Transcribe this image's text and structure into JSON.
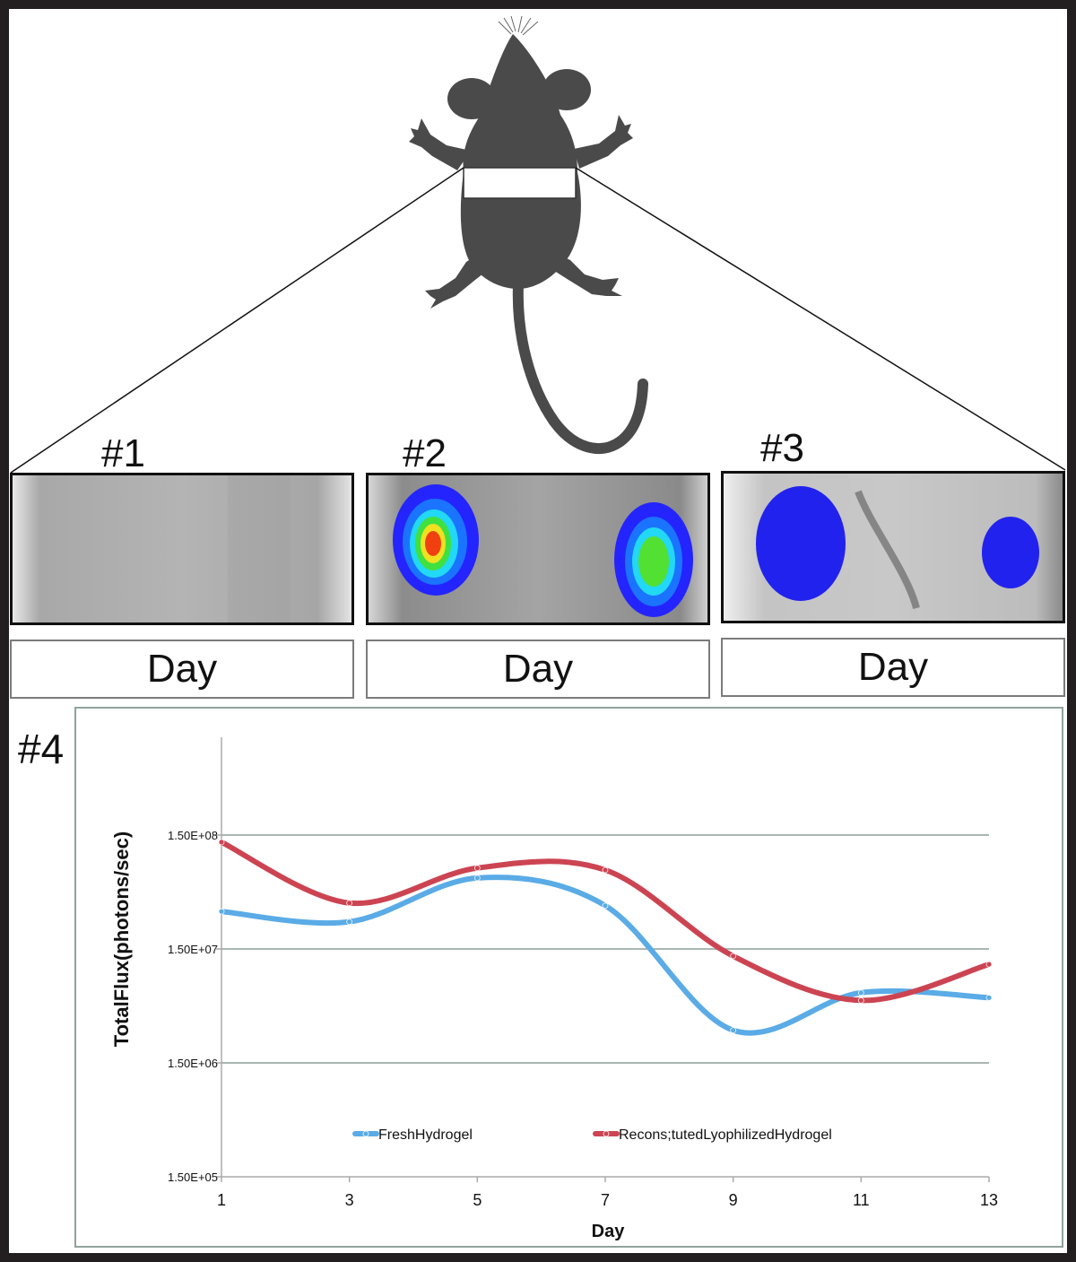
{
  "panels": [
    {
      "label": "#1",
      "day_label": "Day"
    },
    {
      "label": "#2",
      "day_label": "Day"
    },
    {
      "label": "#3",
      "day_label": "Day"
    }
  ],
  "chart_panel_label": "#4",
  "chart_data": {
    "type": "line",
    "xlabel": "Day",
    "ylabel": "TotalFlux(photons/sec)",
    "y_scale": "log",
    "ylim": [
      150000,
      300000000
    ],
    "ytick_labels": [
      "1.50E+05",
      "1.50E+06",
      "1.50E+07",
      "1.50E+08"
    ],
    "ytick_values": [
      150000,
      1500000,
      15000000,
      150000000
    ],
    "x": [
      1,
      3,
      5,
      7,
      9,
      11,
      13
    ],
    "xtick_labels": [
      "1",
      "3",
      "5",
      "7",
      "9",
      "11",
      "13"
    ],
    "grid": "horizontal",
    "legend_position": "bottom",
    "series": [
      {
        "name": "FreshHydrogel",
        "color": "#5aabe6",
        "values": [
          32000000,
          26000000,
          63000000,
          36000000,
          2900000,
          6200000,
          5600000
        ]
      },
      {
        "name": "Recons;tutedLyophilizedHydrogel",
        "color": "#cc4452",
        "values": [
          130000000,
          38000000,
          77000000,
          74000000,
          13000000,
          5300000,
          11000000
        ]
      }
    ]
  }
}
